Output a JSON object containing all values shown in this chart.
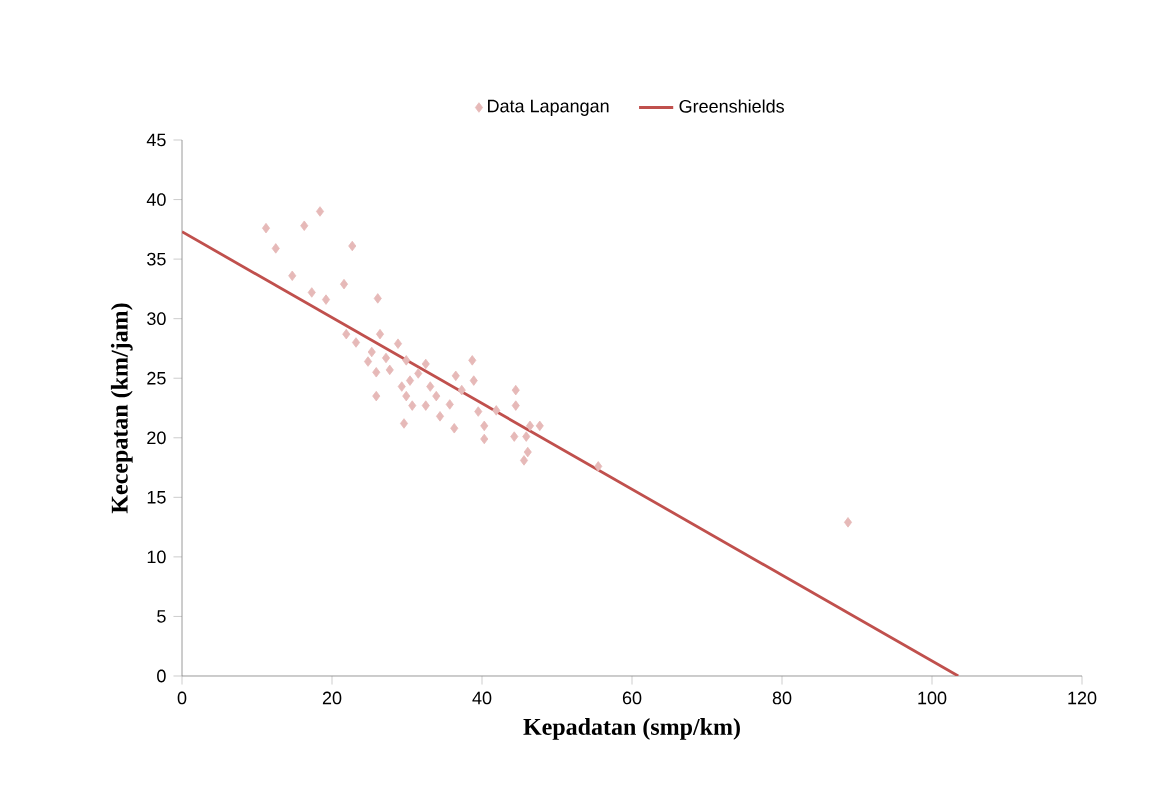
{
  "chart_data": {
    "type": "scatter",
    "xlabel": "Kepadatan  (smp/km)",
    "ylabel": "Kecepatan  (km/jam)",
    "xlim": [
      0,
      120
    ],
    "ylim": [
      0,
      45
    ],
    "xticks": [
      0,
      20,
      40,
      60,
      80,
      100,
      120
    ],
    "yticks": [
      0,
      5,
      10,
      15,
      20,
      25,
      30,
      35,
      40,
      45
    ],
    "legend": "top",
    "series": [
      {
        "name": "Data Lapangan",
        "marker": "diamond",
        "color": "#e6b9b8",
        "x": [
          11.2,
          12.5,
          14.7,
          16.3,
          18.4,
          17.3,
          19.2,
          21.6,
          22.7,
          21.9,
          23.2,
          26.1,
          26.4,
          25.3,
          24.8,
          25.9,
          27.2,
          27.7,
          25.9,
          28.8,
          29.9,
          30.4,
          29.3,
          29.9,
          30.7,
          29.6,
          31.5,
          32.5,
          33.1,
          32.5,
          33.9,
          34.4,
          35.7,
          36.5,
          37.3,
          36.3,
          38.7,
          38.9,
          39.5,
          40.3,
          40.3,
          41.9,
          44.5,
          44.5,
          44.3,
          45.9,
          46.4,
          47.7,
          46.1,
          45.6,
          55.5,
          88.8
        ],
        "values": [
          37.6,
          35.9,
          33.6,
          37.8,
          39.0,
          32.2,
          31.6,
          32.9,
          36.1,
          28.7,
          28.0,
          31.7,
          28.7,
          27.2,
          26.4,
          25.5,
          26.7,
          25.7,
          23.5,
          27.9,
          26.5,
          24.8,
          24.3,
          23.5,
          22.7,
          21.2,
          25.4,
          26.2,
          24.3,
          22.7,
          23.5,
          21.8,
          22.8,
          25.2,
          24.0,
          20.8,
          26.5,
          24.8,
          22.2,
          21.0,
          19.9,
          22.3,
          24.0,
          22.7,
          20.1,
          20.1,
          21.0,
          21.0,
          18.8,
          18.1,
          17.6,
          12.9
        ]
      },
      {
        "name": "Greenshields",
        "type": "line",
        "color": "#c0504d",
        "x": [
          0,
          103.5
        ],
        "values": [
          37.3,
          0
        ]
      }
    ]
  }
}
